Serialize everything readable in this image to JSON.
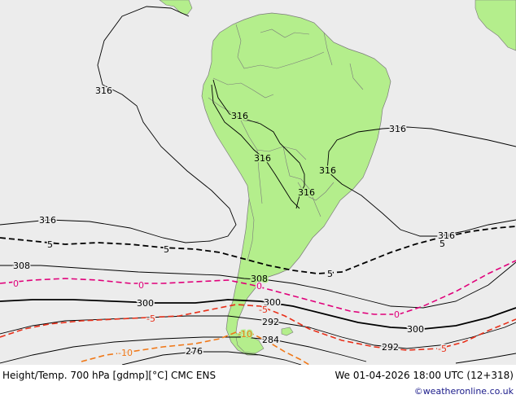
{
  "map": {
    "background_color": "#ececec",
    "land_color": "#b4ee8c",
    "border_color": "#7a7a7a",
    "colors": {
      "height": "#000000",
      "temp_zero": "#e0007a",
      "temp_minus5": "#e8301a",
      "temp_minus10": "#f07818"
    },
    "height_labels": {
      "h316_a": "316",
      "h316_b": "316",
      "h316_c": "316",
      "h316_d": "316",
      "h316_e": "316",
      "h316_f": "316",
      "h316_g": "316",
      "h316_h": "316",
      "h308_a": "308",
      "h308_b": "308",
      "h300_a": "300",
      "h300_b": "300",
      "h300_c": "300",
      "h292_a": "292",
      "h292_b": "292",
      "h284_a": "284",
      "h276_a": "276"
    },
    "temp_labels": {
      "t5_a": "5",
      "t5_b": "5",
      "t5_c": "5",
      "t5_d": "5",
      "t0_a": "0",
      "t0_b": "0",
      "t0_c": "0",
      "t0_d": "0",
      "tm5_a": "-5",
      "tm5_b": "-5",
      "tm5_c": "-5",
      "tm10_a": "-10",
      "tm10_b": "-10"
    }
  },
  "footer": {
    "title": "Height/Temp. 700 hPa [gdmp][°C] CMC ENS",
    "valid_time": "We 01-04-2026 18:00 UTC (12+318)",
    "credit": "©weatheronline.co.uk"
  }
}
